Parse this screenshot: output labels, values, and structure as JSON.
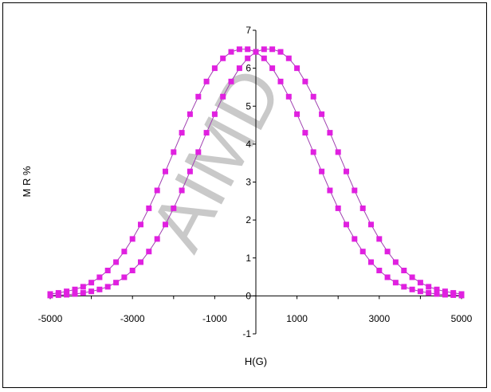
{
  "chart_data": {
    "type": "line",
    "xlabel": "H(G)",
    "ylabel": "M R %",
    "xlim": [
      -5000,
      5000
    ],
    "ylim": [
      -1,
      7
    ],
    "x_ticks": [
      -5000,
      -3000,
      -1000,
      1000,
      3000,
      5000
    ],
    "y_ticks": [
      -1,
      0,
      1,
      2,
      3,
      4,
      5,
      6,
      7
    ],
    "grid": false,
    "legend": "none",
    "marker": "square",
    "watermark": "AIMD",
    "colors": {
      "series": "#e020e0",
      "line": "#a040b0",
      "axis": "#000000",
      "watermark": "#b8b8b8"
    },
    "series": [
      {
        "x": [
          -5000,
          -4800,
          -4600,
          -4400,
          -4200,
          -4000,
          -3800,
          -3600,
          -3400,
          -3200,
          -3000,
          -2800,
          -2600,
          -2400,
          -2200,
          -2000,
          -1800,
          -1600,
          -1400,
          -1200,
          -1000,
          -800,
          -600,
          -400,
          -200,
          0,
          200,
          400,
          600,
          800,
          1000,
          1200,
          1400,
          1600,
          1800,
          2000,
          2200,
          2400,
          2600,
          2800,
          3000,
          3200,
          3400,
          3600,
          3800,
          4000,
          4200,
          4400,
          4600,
          4800,
          5000
        ],
        "y": [
          0.05,
          0.08,
          0.12,
          0.17,
          0.24,
          0.35,
          0.49,
          0.67,
          0.89,
          1.17,
          1.5,
          1.88,
          2.31,
          2.78,
          3.28,
          3.79,
          4.3,
          4.79,
          5.25,
          5.65,
          6.0,
          6.26,
          6.43,
          6.5,
          6.5,
          6.43,
          6.26,
          6.0,
          5.65,
          5.25,
          4.79,
          4.3,
          3.79,
          3.28,
          2.78,
          2.31,
          1.88,
          1.5,
          1.17,
          0.89,
          0.67,
          0.49,
          0.35,
          0.24,
          0.17,
          0.12,
          0.08,
          0.05,
          0.03,
          0.02,
          0.01
        ]
      },
      {
        "x": [
          -5000,
          -4800,
          -4600,
          -4400,
          -4200,
          -4000,
          -3800,
          -3600,
          -3400,
          -3200,
          -3000,
          -2800,
          -2600,
          -2400,
          -2200,
          -2000,
          -1800,
          -1600,
          -1400,
          -1200,
          -1000,
          -800,
          -600,
          -400,
          -200,
          0,
          200,
          400,
          600,
          800,
          1000,
          1200,
          1400,
          1600,
          1800,
          2000,
          2200,
          2400,
          2600,
          2800,
          3000,
          3200,
          3400,
          3600,
          3800,
          4000,
          4200,
          4400,
          4600,
          4800,
          5000
        ],
        "y": [
          0.01,
          0.02,
          0.03,
          0.05,
          0.08,
          0.12,
          0.17,
          0.24,
          0.35,
          0.49,
          0.67,
          0.89,
          1.17,
          1.5,
          1.88,
          2.31,
          2.78,
          3.28,
          3.79,
          4.3,
          4.79,
          5.25,
          5.65,
          6.0,
          6.26,
          6.43,
          6.5,
          6.5,
          6.43,
          6.26,
          6.0,
          5.65,
          5.25,
          4.79,
          4.3,
          3.79,
          3.28,
          2.78,
          2.31,
          1.88,
          1.5,
          1.17,
          0.89,
          0.67,
          0.49,
          0.35,
          0.24,
          0.17,
          0.12,
          0.08,
          0.05
        ]
      }
    ]
  }
}
